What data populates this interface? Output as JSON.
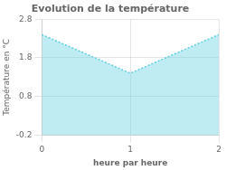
{
  "chart_data": {
    "type": "area",
    "title": "Evolution de la température",
    "xlabel": "heure par heure",
    "ylabel": "Température en °C",
    "x": [
      0,
      1,
      2
    ],
    "values": [
      2.4,
      1.4,
      2.4
    ],
    "xlim": [
      0,
      2
    ],
    "ylim": [
      -0.2,
      2.8
    ],
    "xticks": [
      0,
      1,
      2
    ],
    "yticks": [
      -0.2,
      0.8,
      1.8,
      2.8
    ],
    "color": "#5dcfdf",
    "line_style": "dotted",
    "grid": true
  }
}
